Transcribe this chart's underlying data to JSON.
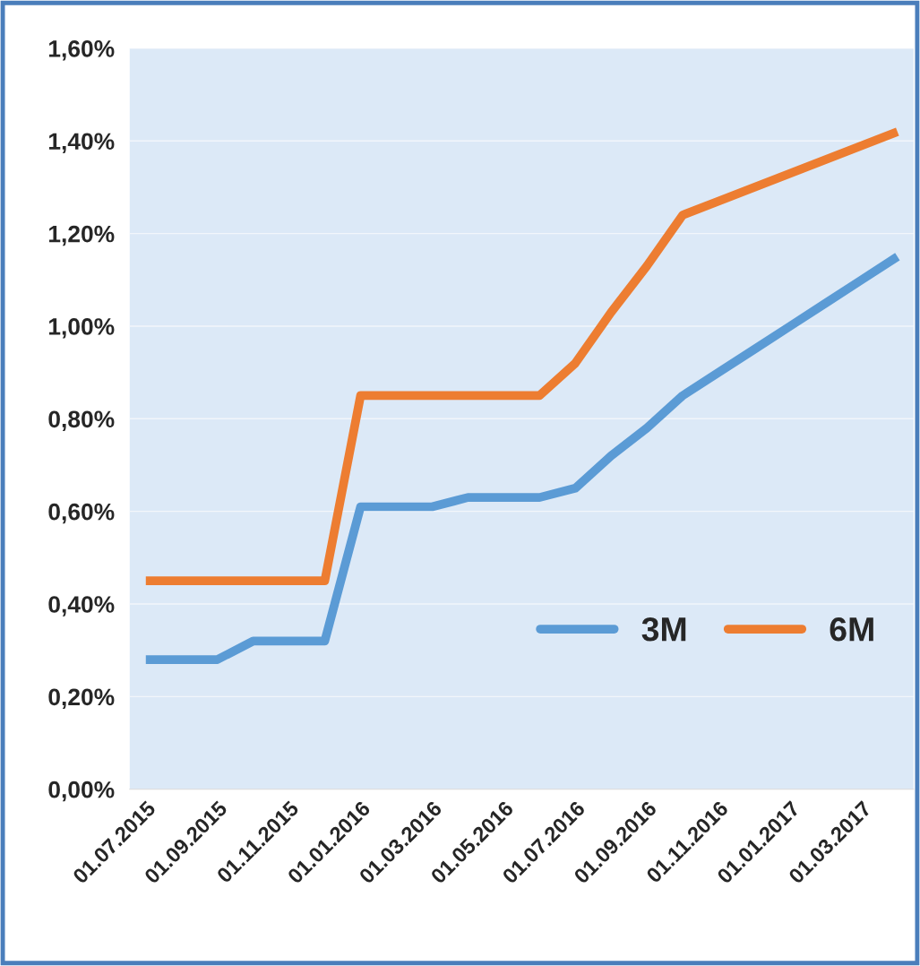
{
  "chart_data": {
    "type": "line",
    "categories": [
      "01.07.2015",
      null,
      "01.09.2015",
      null,
      "01.11.2015",
      null,
      "01.01.2016",
      null,
      "01.03.2016",
      null,
      "01.05.2016",
      null,
      "01.07.2016",
      null,
      "01.09.2016",
      null,
      "01.11.2016",
      null,
      "01.01.2017",
      null,
      "01.03.2017",
      null
    ],
    "series": [
      {
        "name": "3M",
        "color": "#5b9bd5",
        "values": [
          0.28,
          0.28,
          0.28,
          0.32,
          0.32,
          0.32,
          0.61,
          0.61,
          0.61,
          0.63,
          0.63,
          0.63,
          0.65,
          0.72,
          0.78,
          0.85,
          0.9,
          0.95,
          1.0,
          1.05,
          1.1,
          1.15
        ]
      },
      {
        "name": "6M",
        "color": "#ed7d31",
        "values": [
          0.45,
          0.45,
          0.45,
          0.45,
          0.45,
          0.45,
          0.85,
          0.85,
          0.85,
          0.85,
          0.85,
          0.85,
          0.92,
          1.03,
          1.13,
          1.24,
          1.27,
          1.3,
          1.33,
          1.36,
          1.39,
          1.42
        ]
      }
    ],
    "ylim": [
      0,
      1.6
    ],
    "yticks": [
      {
        "value": 0,
        "label": "0,00%"
      },
      {
        "value": 0.2,
        "label": "0,20%"
      },
      {
        "value": 0.4,
        "label": "0,40%"
      },
      {
        "value": 0.6,
        "label": "0,60%"
      },
      {
        "value": 0.8,
        "label": "0,80%"
      },
      {
        "value": 1.0,
        "label": "1,00%"
      },
      {
        "value": 1.2,
        "label": "1,20%"
      },
      {
        "value": 1.4,
        "label": "1,40%"
      },
      {
        "value": 1.6,
        "label": "1,60%"
      }
    ],
    "grid": "y",
    "legend": "lower right",
    "marker": "none",
    "line_style": "solid"
  }
}
